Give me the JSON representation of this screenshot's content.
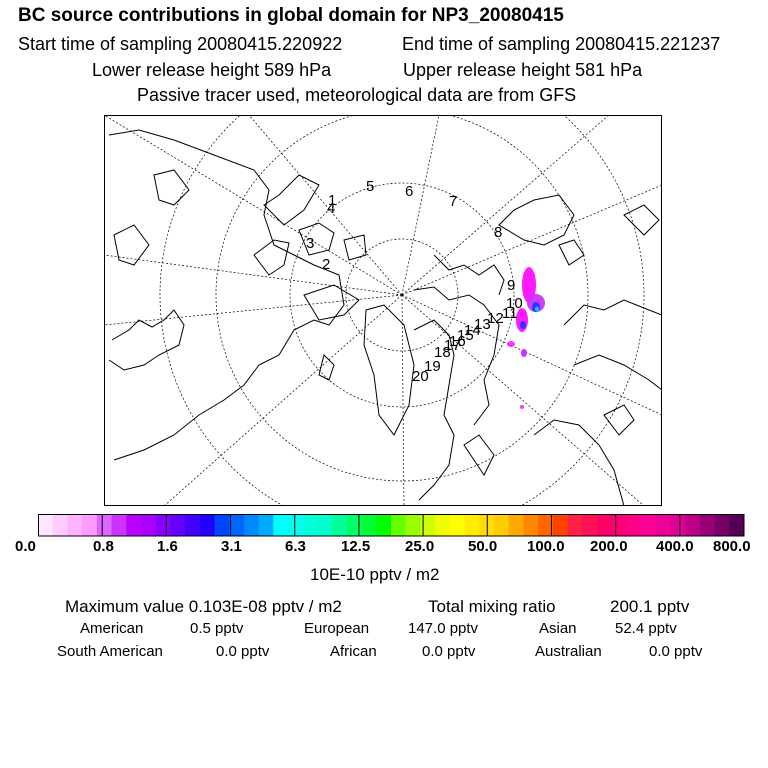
{
  "header": {
    "title": "BC  source contributions in global domain for NP3_20080415",
    "start_label": "Start time of sampling 20080415.220922",
    "end_label": "End time of sampling 20080415.221237",
    "lower_label": "Lower release height  589 hPa",
    "upper_label": "Upper release height  581 hPa",
    "tracer_note": "Passive tracer used, meteorological data are from GFS"
  },
  "map": {
    "projection": "polar stereographic, north pole",
    "trajectory_labels": [
      "1",
      "2",
      "3",
      "4",
      "5",
      "6",
      "7",
      "8",
      "9",
      "10",
      "11",
      "12",
      "13",
      "14",
      "15",
      "16",
      "17",
      "18",
      "19",
      "20"
    ],
    "plume_colors": [
      "#ff00ff",
      "#cc33ff",
      "#3333ff",
      "#00ccff",
      "#00ffcc"
    ]
  },
  "colorbar": {
    "colors": [
      "#ffe6ff",
      "#ffccff",
      "#ffb3ff",
      "#ff99ff",
      "#dd66ff",
      "#cc33ff",
      "#bb00ff",
      "#aa00ff",
      "#8800ff",
      "#6600ff",
      "#4400ff",
      "#2200ff",
      "#0044ff",
      "#0066ff",
      "#0088ff",
      "#00aaff",
      "#00ffff",
      "#00ffee",
      "#00ffdd",
      "#00ffcc",
      "#00ff99",
      "#00ff66",
      "#00ff33",
      "#00ff00",
      "#66ff00",
      "#99ff00",
      "#ccff00",
      "#eeff00",
      "#ffff00",
      "#ffee00",
      "#ffdd00",
      "#ffcc00",
      "#ffaa00",
      "#ff8800",
      "#ff6600",
      "#ff4400",
      "#ff2244",
      "#ff1155",
      "#ff0066",
      "#ff0077",
      "#ff0088",
      "#ff0099",
      "#ee0099",
      "#dd0099",
      "#bb0088",
      "#990077",
      "#770066",
      "#550055"
    ],
    "tick_labels": [
      "0.0",
      "0.8",
      "1.6",
      "3.1",
      "6.3",
      "12.5",
      "25.0",
      "50.0",
      "100.0",
      "200.0",
      "400.0",
      "800.0"
    ],
    "unit_label": "10E-10 pptv / m2"
  },
  "stats": {
    "max_label": "Maximum value  0.103E-08 pptv / m2",
    "total_label": "Total mixing ratio",
    "total_value": "200.1 pptv",
    "regions": [
      {
        "name": "American",
        "value": "0.5 pptv"
      },
      {
        "name": "European",
        "value": "147.0 pptv"
      },
      {
        "name": "Asian",
        "value": "52.4 pptv"
      },
      {
        "name": "South American",
        "value": "0.0 pptv"
      },
      {
        "name": "African",
        "value": "0.0 pptv"
      },
      {
        "name": "Australian",
        "value": "0.0 pptv"
      }
    ]
  }
}
